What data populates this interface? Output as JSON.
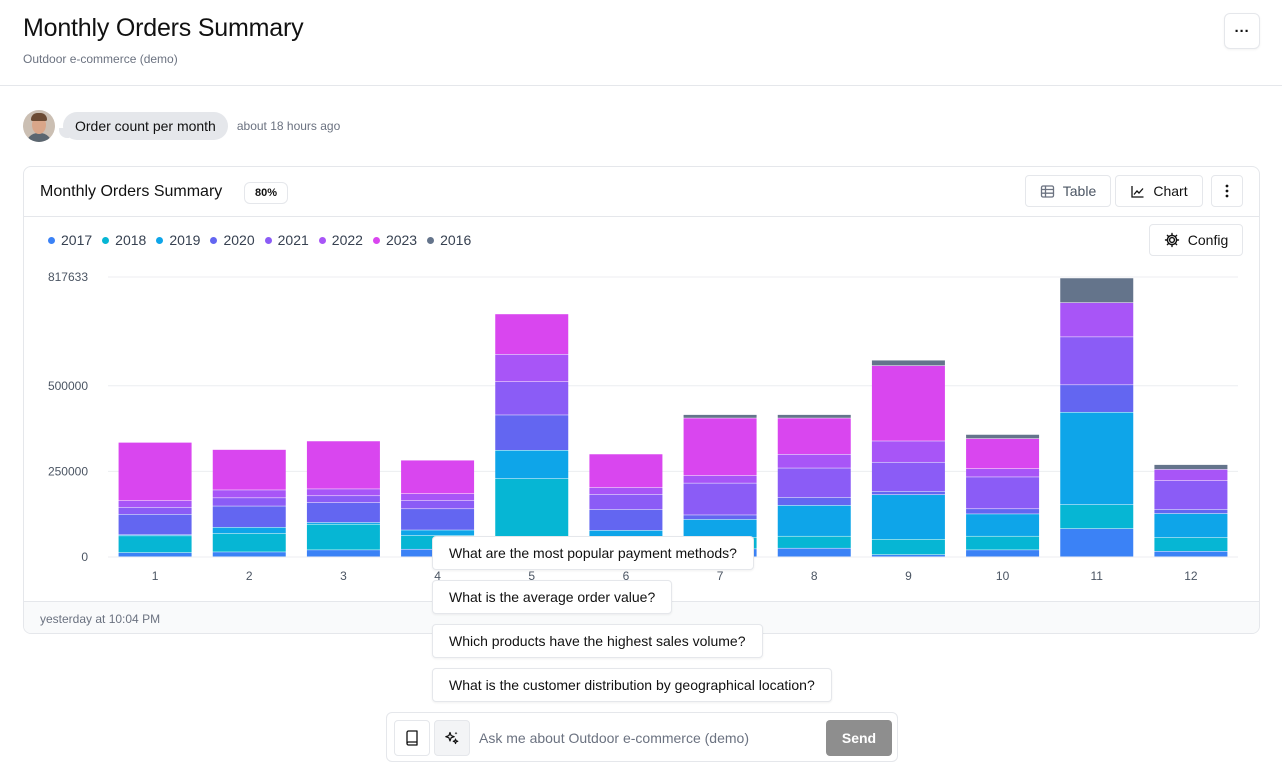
{
  "header": {
    "title": "Monthly Orders Summary",
    "subtitle": "Outdoor e-commerce (demo)",
    "more_label": "···"
  },
  "message": {
    "text": "Order count per month",
    "time": "about 18 hours ago"
  },
  "card": {
    "title": "Monthly Orders Summary",
    "badge": "80%",
    "table_label": "Table",
    "chart_label": "Chart",
    "config_label": "Config",
    "footer_time": "yesterday at 10:04 PM"
  },
  "colors": {
    "2017": "#3b82f6",
    "2018": "#06b6d4",
    "2019": "#0ea5e9",
    "2020": "#6366f1",
    "2021": "#8b5cf6",
    "2022": "#a855f7",
    "2023": "#d946ef",
    "2016": "#64748b"
  },
  "chart_data": {
    "type": "bar",
    "stacked": true,
    "categories": [
      "1",
      "2",
      "3",
      "4",
      "5",
      "6",
      "7",
      "8",
      "9",
      "10",
      "11",
      "12"
    ],
    "y_ticks": [
      "0",
      "250000",
      "500000",
      "817633"
    ],
    "ylim": [
      0,
      817633
    ],
    "grid": true,
    "legend_position": "top-left",
    "series": [
      {
        "name": "2017",
        "color": "#3b82f6",
        "values": [
          12000,
          14000,
          20000,
          22000,
          28000,
          20000,
          23000,
          25000,
          6000,
          20000,
          82000,
          16000
        ]
      },
      {
        "name": "2018",
        "color": "#06b6d4",
        "values": [
          49000,
          54000,
          75000,
          40000,
          200000,
          32000,
          34000,
          35000,
          45000,
          40000,
          70000,
          40000
        ]
      },
      {
        "name": "2019",
        "color": "#0ea5e9",
        "values": [
          3000,
          18000,
          5000,
          16000,
          83000,
          25000,
          52000,
          90000,
          130000,
          65000,
          270000,
          70000
        ]
      },
      {
        "name": "2020",
        "color": "#6366f1",
        "values": [
          60000,
          62000,
          58000,
          62000,
          103000,
          61000,
          13000,
          23000,
          10000,
          15000,
          80000,
          12000
        ]
      },
      {
        "name": "2021",
        "color": "#8b5cf6",
        "values": [
          20000,
          24000,
          20000,
          24000,
          97000,
          44000,
          93000,
          86000,
          85000,
          93000,
          140000,
          84000
        ]
      },
      {
        "name": "2022",
        "color": "#a855f7",
        "values": [
          20000,
          23000,
          20000,
          20000,
          80000,
          20000,
          22000,
          40000,
          62000,
          24000,
          100000,
          33000
        ]
      },
      {
        "name": "2023",
        "color": "#d946ef",
        "values": [
          170000,
          118000,
          140000,
          98000,
          118000,
          98000,
          168000,
          106000,
          220000,
          88000,
          0,
          0
        ]
      },
      {
        "name": "2016",
        "color": "#64748b",
        "values": [
          0,
          0,
          0,
          0,
          0,
          0,
          10000,
          10000,
          16000,
          12000,
          72000,
          14000
        ]
      }
    ]
  },
  "suggestions": [
    "What are the most popular payment methods?",
    "What is the average order value?",
    "Which products have the highest sales volume?",
    "What is the customer distribution by geographical location?"
  ],
  "composer": {
    "placeholder": "Ask me about Outdoor e-commerce (demo)",
    "send_label": "Send"
  }
}
